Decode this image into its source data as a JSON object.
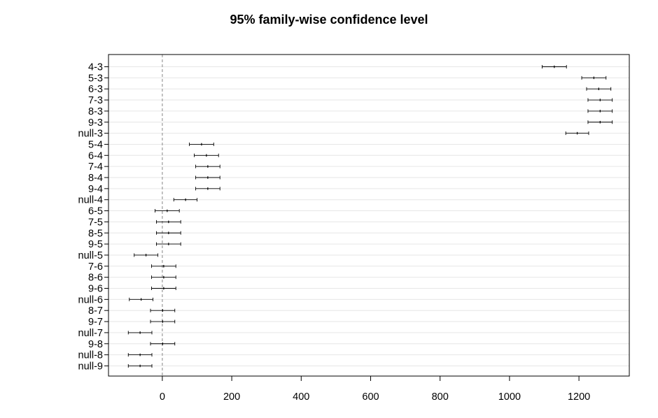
{
  "chart_data": {
    "type": "errorbar",
    "title": "95% family-wise confidence level",
    "xlabel": "",
    "ylabel": "",
    "xlim": [
      -155,
      1345
    ],
    "xticks": [
      0,
      200,
      400,
      600,
      800,
      1000,
      1200
    ],
    "reference_line": 0,
    "grid": true,
    "comparisons": [
      {
        "label": "4-3",
        "est": 1129,
        "lwr": 1094,
        "upr": 1164
      },
      {
        "label": "5-3",
        "est": 1243,
        "lwr": 1208,
        "upr": 1278
      },
      {
        "label": "6-3",
        "est": 1257,
        "lwr": 1222,
        "upr": 1292
      },
      {
        "label": "7-3",
        "est": 1261,
        "lwr": 1226,
        "upr": 1296
      },
      {
        "label": "8-3",
        "est": 1261,
        "lwr": 1226,
        "upr": 1296
      },
      {
        "label": "9-3",
        "est": 1261,
        "lwr": 1226,
        "upr": 1296
      },
      {
        "label": "null-3",
        "est": 1195,
        "lwr": 1162,
        "upr": 1228
      },
      {
        "label": "5-4",
        "est": 113,
        "lwr": 78,
        "upr": 148
      },
      {
        "label": "6-4",
        "est": 127,
        "lwr": 92,
        "upr": 162
      },
      {
        "label": "7-4",
        "est": 131,
        "lwr": 96,
        "upr": 166
      },
      {
        "label": "8-4",
        "est": 131,
        "lwr": 96,
        "upr": 166
      },
      {
        "label": "9-4",
        "est": 131,
        "lwr": 96,
        "upr": 166
      },
      {
        "label": "null-4",
        "est": 67,
        "lwr": 33,
        "upr": 100
      },
      {
        "label": "6-5",
        "est": 14,
        "lwr": -21,
        "upr": 49
      },
      {
        "label": "7-5",
        "est": 18,
        "lwr": -17,
        "upr": 53
      },
      {
        "label": "8-5",
        "est": 18,
        "lwr": -17,
        "upr": 53
      },
      {
        "label": "9-5",
        "est": 18,
        "lwr": -17,
        "upr": 53
      },
      {
        "label": "null-5",
        "est": -47,
        "lwr": -81,
        "upr": -13
      },
      {
        "label": "7-6",
        "est": 4,
        "lwr": -31,
        "upr": 39
      },
      {
        "label": "8-6",
        "est": 4,
        "lwr": -31,
        "upr": 39
      },
      {
        "label": "9-6",
        "est": 4,
        "lwr": -31,
        "upr": 39
      },
      {
        "label": "null-6",
        "est": -61,
        "lwr": -95,
        "upr": -27
      },
      {
        "label": "8-7",
        "est": 1,
        "lwr": -34,
        "upr": 36
      },
      {
        "label": "9-7",
        "est": 1,
        "lwr": -34,
        "upr": 36
      },
      {
        "label": "null-7",
        "est": -64,
        "lwr": -98,
        "upr": -30
      },
      {
        "label": "9-8",
        "est": 1,
        "lwr": -34,
        "upr": 36
      },
      {
        "label": "null-8",
        "est": -64,
        "lwr": -98,
        "upr": -30
      },
      {
        "label": "null-9",
        "est": -64,
        "lwr": -98,
        "upr": -30
      }
    ]
  }
}
